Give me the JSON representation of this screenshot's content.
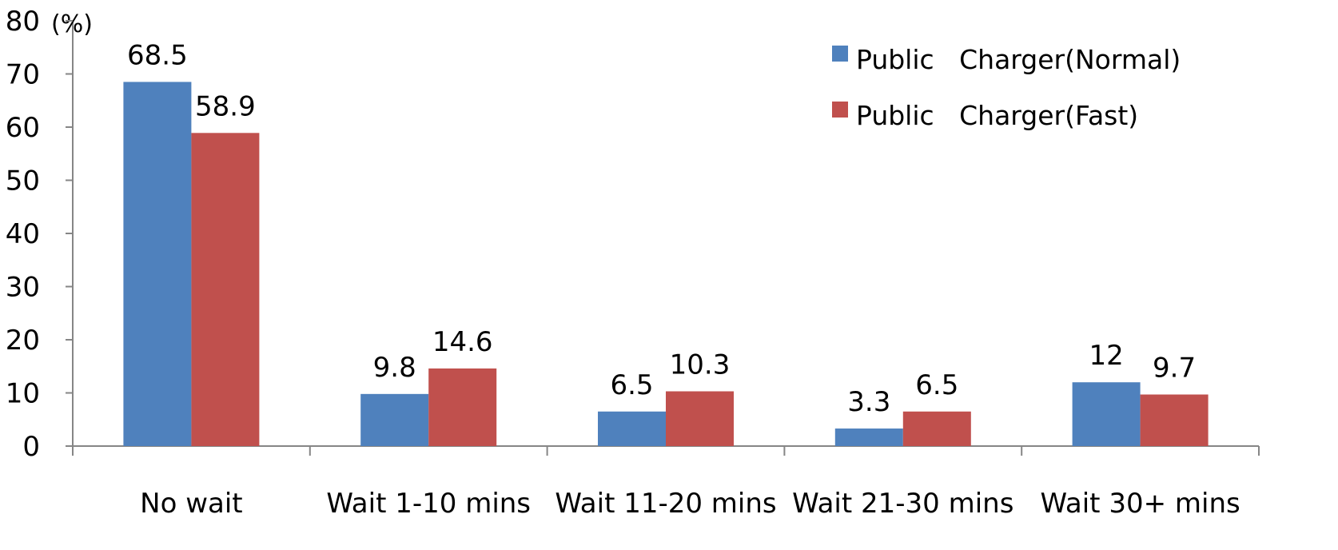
{
  "chart_data": {
    "type": "bar",
    "unit_label": "(%)",
    "categories": [
      "No wait",
      "Wait 1-10 mins",
      "Wait 11-20 mins",
      "Wait 21-30 mins",
      "Wait 30+ mins"
    ],
    "series": [
      {
        "name": "Public   Charger(Normal)",
        "color": "#4f81bd",
        "values": [
          68.5,
          9.8,
          6.5,
          3.3,
          12
        ]
      },
      {
        "name": "Public   Charger(Fast)",
        "color": "#c0504d",
        "values": [
          58.9,
          14.6,
          10.3,
          6.5,
          9.7
        ]
      }
    ],
    "ylim": [
      0,
      80
    ],
    "yticks": [
      0,
      10,
      20,
      30,
      40,
      50,
      60,
      70,
      80
    ],
    "grid": false,
    "legend_position": "top-right"
  }
}
